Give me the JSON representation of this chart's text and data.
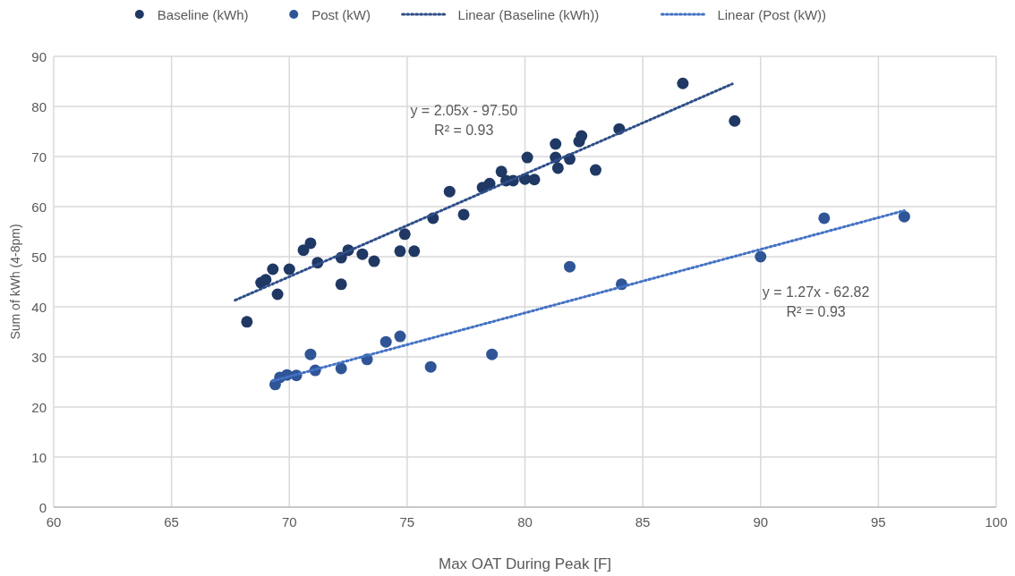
{
  "chart_data": {
    "type": "scatter",
    "xlabel": "Max OAT During Peak [F]",
    "ylabel": "Sum of kWh (4-8pm)",
    "xlim": [
      60,
      100
    ],
    "xticks": [
      60,
      65,
      70,
      75,
      80,
      85,
      90,
      95,
      100
    ],
    "ylim": [
      0,
      90
    ],
    "yticks": [
      0,
      10,
      20,
      30,
      40,
      50,
      60,
      70,
      80,
      90
    ],
    "grid": true,
    "legend": "top",
    "marker": "circle",
    "series": [
      {
        "name": "Baseline (kWh)",
        "color": "#203864",
        "x": [
          68.2,
          68.8,
          69.0,
          69.3,
          69.5,
          70.0,
          70.6,
          70.9,
          71.2,
          72.2,
          72.2,
          72.5,
          73.1,
          73.6,
          74.7,
          74.9,
          75.3,
          76.1,
          76.8,
          77.4,
          78.2,
          78.5,
          79.0,
          79.2,
          79.5,
          80.0,
          80.1,
          80.4,
          81.3,
          81.3,
          81.4,
          81.9,
          82.3,
          82.4,
          83.0,
          84.0,
          86.7,
          88.9
        ],
        "values": [
          37.0,
          44.8,
          45.4,
          47.5,
          42.5,
          47.5,
          51.3,
          52.7,
          48.8,
          49.8,
          44.5,
          51.3,
          50.5,
          49.1,
          51.1,
          54.5,
          51.1,
          57.7,
          63.0,
          58.4,
          63.8,
          64.6,
          67.0,
          65.2,
          65.2,
          65.5,
          69.8,
          65.4,
          69.8,
          72.5,
          67.7,
          69.5,
          73.0,
          74.1,
          67.3,
          75.5,
          84.6,
          77.1
        ]
      },
      {
        "name": "Post (kW)",
        "color": "#2f5597",
        "x": [
          69.4,
          69.6,
          69.9,
          70.3,
          70.9,
          71.1,
          72.2,
          73.3,
          74.1,
          74.7,
          76.0,
          78.6,
          81.9,
          84.1,
          90.0,
          92.7,
          96.1
        ],
        "values": [
          24.5,
          25.9,
          26.4,
          26.3,
          30.5,
          27.3,
          27.7,
          29.5,
          33.0,
          34.1,
          28.0,
          30.5,
          48.0,
          44.5,
          50.0,
          57.7,
          58.0
        ]
      },
      {
        "name": "Linear (Baseline (kWh))",
        "type": "line",
        "line_style": "dotted",
        "marker": "none",
        "color": "#2f4f8a",
        "x": [
          67.7,
          88.8
        ],
        "values": [
          41.3,
          84.5
        ]
      },
      {
        "name": "Linear (Post (kW))",
        "type": "line",
        "line_style": "dotted",
        "marker": "none",
        "color": "#4472c4",
        "x": [
          69.3,
          96.1
        ],
        "values": [
          25.2,
          59.2
        ]
      }
    ],
    "annotations": [
      "y = 2.05x - 97.50\nR² = 0.93",
      "y = 1.27x - 62.82\nR² = 0.93"
    ]
  }
}
